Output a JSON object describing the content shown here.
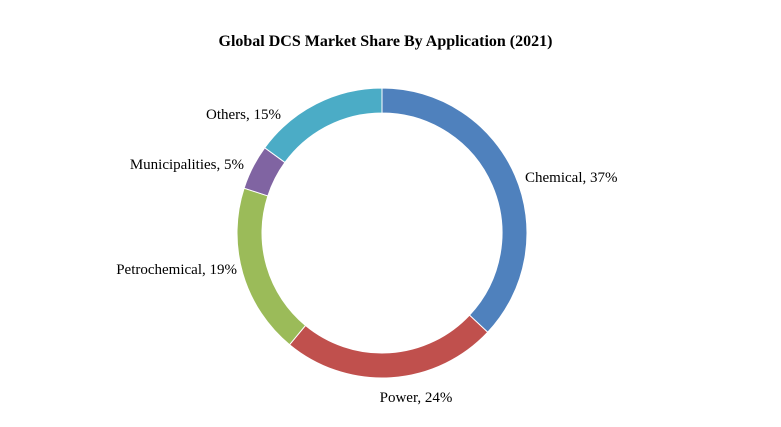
{
  "chart_data": {
    "type": "pie",
    "subtype": "donut",
    "title": "Global DCS Market Share By Application (2021)",
    "categories": [
      "Chemical",
      "Power",
      "Petrochemical",
      "Municipalities",
      "Others"
    ],
    "values": [
      37,
      24,
      19,
      5,
      15
    ],
    "unit": "%",
    "labels": [
      "Chemical, 37%",
      "Power, 24%",
      "Petrochemical, 19%",
      "Municipalities, 5%",
      "Others, 15%"
    ],
    "colors": [
      "#4F81BD",
      "#C0504D",
      "#9BBB59",
      "#8064A2",
      "#4BACC6"
    ],
    "start_angle": "top",
    "direction": "clockwise",
    "legend": "none"
  }
}
